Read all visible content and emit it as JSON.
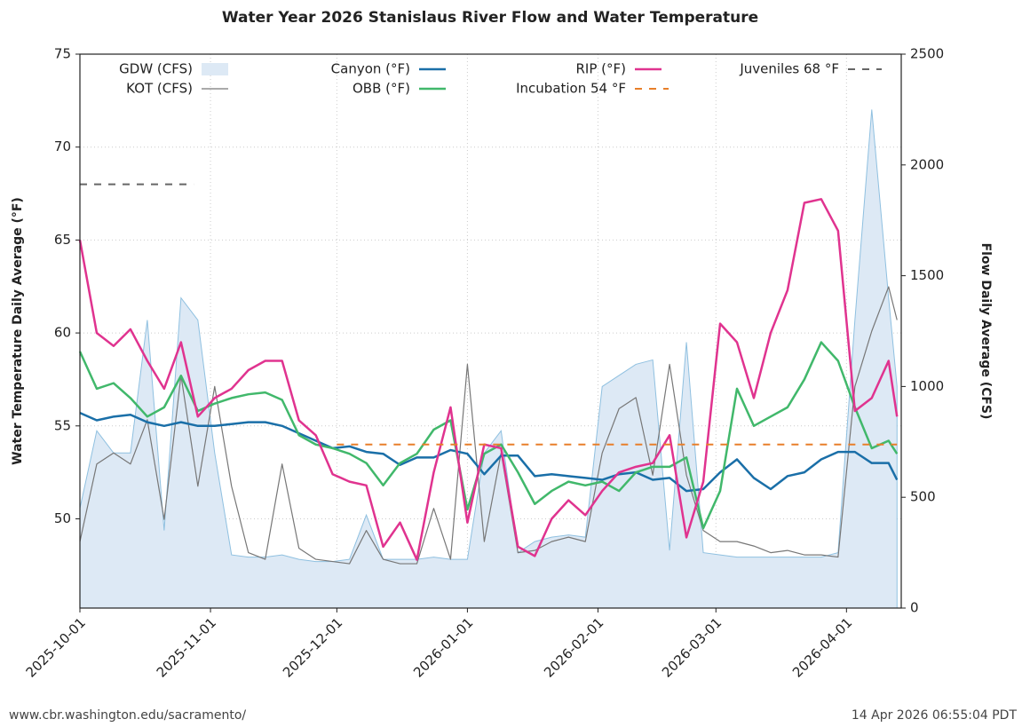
{
  "chart_data": {
    "type": "line",
    "title": "Water Year 2026 Stanislaus River Flow and Water Temperature",
    "ylabel": "Water Temperature Daily Average (°F)",
    "y2label": "Flow Daily Average (CFS)",
    "x": [
      "2025-10-01",
      "2025-10-05",
      "2025-10-09",
      "2025-10-13",
      "2025-10-17",
      "2025-10-21",
      "2025-10-25",
      "2025-10-29",
      "2025-11-02",
      "2025-11-06",
      "2025-11-10",
      "2025-11-14",
      "2025-11-18",
      "2025-11-22",
      "2025-11-26",
      "2025-11-30",
      "2025-12-04",
      "2025-12-08",
      "2025-12-12",
      "2025-12-16",
      "2025-12-20",
      "2025-12-24",
      "2025-12-28",
      "2026-01-01",
      "2026-01-05",
      "2026-01-09",
      "2026-01-13",
      "2026-01-17",
      "2026-01-21",
      "2026-01-25",
      "2026-01-29",
      "2026-02-02",
      "2026-02-06",
      "2026-02-10",
      "2026-02-14",
      "2026-02-18",
      "2026-02-22",
      "2026-02-26",
      "2026-03-02",
      "2026-03-06",
      "2026-03-10",
      "2026-03-14",
      "2026-03-18",
      "2026-03-22",
      "2026-03-26",
      "2026-03-30",
      "2026-04-03",
      "2026-04-07",
      "2026-04-11",
      "2026-04-13"
    ],
    "xlim": [
      "2025-10-01",
      "2026-04-14"
    ],
    "xticks": [
      "2025-10-01",
      "2025-11-01",
      "2025-12-01",
      "2026-01-01",
      "2026-02-01",
      "2026-03-01",
      "2026-04-01"
    ],
    "ylim": [
      45.2,
      75
    ],
    "yticks": [
      50,
      55,
      60,
      65,
      70,
      75
    ],
    "y2lim": [
      0,
      2500
    ],
    "y2ticks": [
      0,
      500,
      1000,
      1500,
      2000,
      2500
    ],
    "grid": true,
    "series": [
      {
        "name": "GDW (CFS)",
        "style": "area",
        "axis": "y2",
        "color": "#8fc0e0",
        "fill": "#dde9f5",
        "values": [
          450,
          800,
          700,
          700,
          1300,
          350,
          1400,
          1300,
          700,
          240,
          230,
          230,
          240,
          220,
          210,
          210,
          220,
          420,
          220,
          220,
          220,
          230,
          220,
          220,
          700,
          800,
          250,
          300,
          320,
          330,
          320,
          1000,
          1050,
          1100,
          1120,
          260,
          1200,
          250,
          240,
          230,
          230,
          230,
          230,
          230,
          230,
          250,
          1300,
          2250,
          1400,
          1000
        ]
      },
      {
        "name": "KOT (CFS)",
        "style": "line",
        "axis": "y2",
        "color": "#777777",
        "values": [
          300,
          650,
          700,
          650,
          850,
          400,
          1050,
          550,
          1000,
          550,
          250,
          220,
          650,
          270,
          220,
          210,
          200,
          350,
          220,
          200,
          200,
          450,
          220,
          1100,
          300,
          700,
          250,
          260,
          300,
          320,
          300,
          700,
          900,
          950,
          600,
          1100,
          600,
          350,
          300,
          300,
          280,
          250,
          260,
          240,
          240,
          230,
          1000,
          1250,
          1450,
          1300
        ]
      },
      {
        "name": "Canyon (°F)",
        "style": "line",
        "color": "#1a6fa8",
        "values": [
          55.7,
          55.3,
          55.5,
          55.6,
          55.2,
          55.0,
          55.2,
          55.0,
          55.0,
          55.1,
          55.2,
          55.2,
          55.0,
          54.6,
          54.2,
          53.8,
          53.9,
          53.6,
          53.5,
          52.9,
          53.3,
          53.3,
          53.7,
          53.5,
          52.4,
          53.4,
          53.4,
          52.3,
          52.4,
          52.3,
          52.2,
          52.1,
          52.4,
          52.5,
          52.1,
          52.2,
          51.5,
          51.6,
          52.5,
          53.2,
          52.2,
          51.6,
          52.3,
          52.5,
          53.2,
          53.6,
          53.6,
          53.0,
          53.0,
          52.1
        ]
      },
      {
        "name": "OBB (°F)",
        "style": "line",
        "color": "#41b86b",
        "values": [
          59,
          57,
          57.3,
          56.5,
          55.5,
          56,
          57.7,
          55.8,
          56.2,
          56.5,
          56.7,
          56.8,
          56.4,
          54.5,
          54.0,
          53.8,
          53.5,
          53,
          51.8,
          53.0,
          53.5,
          54.8,
          55.3,
          50.5,
          53.5,
          54.0,
          52.5,
          50.8,
          51.5,
          52,
          51.8,
          52.0,
          51.5,
          52.5,
          52.8,
          52.8,
          53.3,
          49.5,
          51.5,
          57.0,
          55.0,
          55.5,
          56.0,
          57.5,
          59.5,
          58.5,
          56,
          53.8,
          54.2,
          53.5
        ]
      },
      {
        "name": "RIP (°F)",
        "style": "line",
        "color": "#e0338f",
        "values": [
          65,
          60,
          59.3,
          60.2,
          58.5,
          57,
          59.5,
          55.5,
          56.5,
          57,
          58,
          58.5,
          58.5,
          55.3,
          54.5,
          52.4,
          52,
          51.8,
          48.5,
          49.8,
          47.8,
          52.5,
          56,
          49.8,
          54.0,
          53.8,
          48.5,
          48.0,
          50,
          51,
          50.2,
          51.5,
          52.5,
          52.8,
          53,
          54.5,
          49,
          52,
          60.5,
          59.5,
          56.5,
          60,
          62.3,
          67,
          67.2,
          65.5,
          55.8,
          56.5,
          58.5,
          55.5
        ]
      }
    ],
    "reference_lines": [
      {
        "name": "Incubation 54 °F",
        "value": 54,
        "x": [
          "2025-12-01",
          "2026-04-13"
        ],
        "color": "#e87f2a"
      },
      {
        "name": "Juveniles 68 °F",
        "value": 68,
        "x": [
          "2025-10-01",
          "2025-10-28"
        ],
        "color": "#666666"
      }
    ]
  },
  "footer": {
    "source": "www.cbr.washington.edu/sacramento/",
    "timestamp": "14 Apr 2026 06:55:04 PDT"
  }
}
